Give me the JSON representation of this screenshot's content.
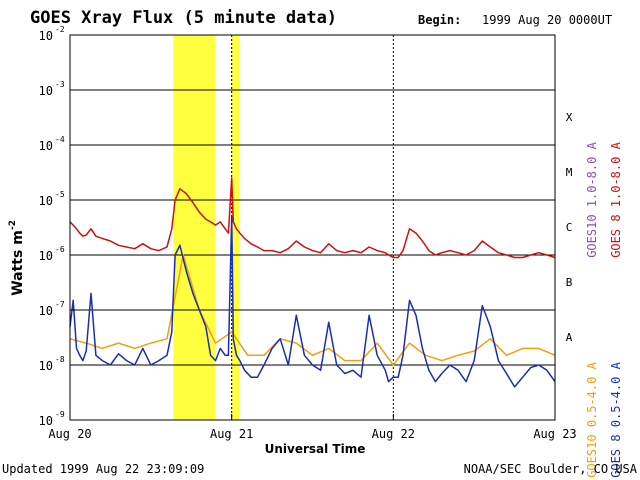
{
  "chart_data": {
    "type": "line",
    "title": "GOES Xray Flux (5 minute data)",
    "begin_label": "Begin:",
    "begin_value": "1999 Aug 20 0000UT",
    "xlabel": "Universal Time",
    "ylabel": "Watts m",
    "ylabel_exp": "-2",
    "y_scale": "log",
    "ylim": [
      1e-09,
      0.01
    ],
    "y_ticks": [
      {
        "base": "10",
        "exp": "-9",
        "value": 1e-09
      },
      {
        "base": "10",
        "exp": "-8",
        "value": 1e-08
      },
      {
        "base": "10",
        "exp": "-7",
        "value": 1e-07
      },
      {
        "base": "10",
        "exp": "-6",
        "value": 1e-06
      },
      {
        "base": "10",
        "exp": "-5",
        "value": 1e-05
      },
      {
        "base": "10",
        "exp": "-4",
        "value": 0.0001
      },
      {
        "base": "10",
        "exp": "-3",
        "value": 0.001
      },
      {
        "base": "10",
        "exp": "-2",
        "value": 0.01
      }
    ],
    "x_ticks": [
      "Aug 20",
      "Aug 21",
      "Aug 22",
      "Aug 23"
    ],
    "xlim_days": [
      0,
      3
    ],
    "flare_classes": [
      {
        "label": "A",
        "value": 3.2e-08
      },
      {
        "label": "B",
        "value": 3.2e-07
      },
      {
        "label": "C",
        "value": 3.2e-06
      },
      {
        "label": "M",
        "value": 3.2e-05
      },
      {
        "label": "X",
        "value": 0.00032
      }
    ],
    "highlights": [
      {
        "from": 0.64,
        "to": 0.9,
        "color": "#ffff40"
      },
      {
        "from": 1.0,
        "to": 1.05,
        "color": "#ffff40"
      }
    ],
    "legend": [
      {
        "text": "GOES10 1.0-8.0 A",
        "color": "#8a4fb8"
      },
      {
        "text": "GOES 8 1.0-8.0 A",
        "color": "#cc1111"
      },
      {
        "text": "GOES10 0.5-4.0 A",
        "color": "#f0a010"
      },
      {
        "text": "GOES 8 0.5-4.0 A",
        "color": "#1a2fb0"
      }
    ],
    "series": [
      {
        "name": "GOES 8 1.0-8.0 A",
        "color": "#cc1111",
        "x": [
          0.0,
          0.02,
          0.04,
          0.06,
          0.08,
          0.1,
          0.13,
          0.16,
          0.2,
          0.25,
          0.3,
          0.35,
          0.4,
          0.45,
          0.5,
          0.55,
          0.6,
          0.63,
          0.65,
          0.68,
          0.72,
          0.76,
          0.8,
          0.84,
          0.87,
          0.9,
          0.93,
          0.96,
          0.98,
          1.0,
          1.01,
          1.03,
          1.05,
          1.08,
          1.12,
          1.16,
          1.2,
          1.25,
          1.3,
          1.35,
          1.4,
          1.45,
          1.5,
          1.55,
          1.6,
          1.65,
          1.7,
          1.75,
          1.8,
          1.85,
          1.9,
          1.95,
          1.97,
          2.0,
          2.03,
          2.06,
          2.1,
          2.14,
          2.18,
          2.22,
          2.26,
          2.3,
          2.35,
          2.4,
          2.45,
          2.5,
          2.55,
          2.6,
          2.65,
          2.7,
          2.75,
          2.8,
          2.85,
          2.9,
          2.95,
          3.0
        ],
        "y": [
          4e-06,
          3.5e-06,
          3e-06,
          2.5e-06,
          2.2e-06,
          2.3e-06,
          3e-06,
          2.2e-06,
          2e-06,
          1.8e-06,
          1.5e-06,
          1.4e-06,
          1.3e-06,
          1.6e-06,
          1.3e-06,
          1.2e-06,
          1.4e-06,
          3e-06,
          1e-05,
          1.6e-05,
          1.3e-05,
          9e-06,
          6e-06,
          4.5e-06,
          4e-06,
          3.5e-06,
          4e-06,
          3e-06,
          2.5e-06,
          2.5e-05,
          4e-06,
          3e-06,
          2.5e-06,
          2e-06,
          1.6e-06,
          1.4e-06,
          1.2e-06,
          1.2e-06,
          1.1e-06,
          1.3e-06,
          1.8e-06,
          1.4e-06,
          1.2e-06,
          1.1e-06,
          1.6e-06,
          1.2e-06,
          1.1e-06,
          1.2e-06,
          1.1e-06,
          1.4e-06,
          1.2e-06,
          1.1e-06,
          1e-06,
          9e-07,
          9e-07,
          1.2e-06,
          3e-06,
          2.5e-06,
          1.8e-06,
          1.2e-06,
          1e-06,
          1.1e-06,
          1.2e-06,
          1.1e-06,
          1e-06,
          1.2e-06,
          1.8e-06,
          1.4e-06,
          1.1e-06,
          1e-06,
          9e-07,
          9e-07,
          1e-06,
          1.1e-06,
          1e-06,
          9e-07
        ]
      },
      {
        "name": "GOES 8 0.5-4.0 A",
        "color": "#1a2fb0",
        "x": [
          0.0,
          0.02,
          0.04,
          0.06,
          0.08,
          0.1,
          0.13,
          0.16,
          0.2,
          0.25,
          0.3,
          0.35,
          0.4,
          0.45,
          0.5,
          0.55,
          0.6,
          0.63,
          0.65,
          0.68,
          0.72,
          0.76,
          0.8,
          0.84,
          0.87,
          0.9,
          0.93,
          0.96,
          0.98,
          1.0,
          1.01,
          1.03,
          1.05,
          1.08,
          1.12,
          1.16,
          1.2,
          1.25,
          1.3,
          1.35,
          1.4,
          1.45,
          1.5,
          1.55,
          1.6,
          1.65,
          1.7,
          1.75,
          1.8,
          1.85,
          1.9,
          1.95,
          1.97,
          2.0,
          2.03,
          2.06,
          2.1,
          2.14,
          2.18,
          2.22,
          2.26,
          2.3,
          2.35,
          2.4,
          2.45,
          2.5,
          2.55,
          2.6,
          2.65,
          2.7,
          2.75,
          2.8,
          2.85,
          2.9,
          2.95,
          3.0
        ],
        "y": [
          5e-08,
          1.5e-07,
          2e-08,
          1.5e-08,
          1.2e-08,
          1.8e-08,
          2e-07,
          1.5e-08,
          1.2e-08,
          1e-08,
          1.6e-08,
          1.2e-08,
          1e-08,
          2e-08,
          1e-08,
          1.2e-08,
          1.5e-08,
          4e-08,
          1e-06,
          1.5e-06,
          5e-07,
          2e-07,
          1e-07,
          5e-08,
          1.5e-08,
          1.2e-08,
          2e-08,
          1.5e-08,
          1.5e-08,
          5e-06,
          3e-08,
          1.5e-08,
          1.2e-08,
          8e-09,
          6e-09,
          6e-09,
          1e-08,
          2e-08,
          3e-08,
          1e-08,
          8e-08,
          1.5e-08,
          1e-08,
          8e-09,
          6e-08,
          1e-08,
          7e-09,
          8e-09,
          6e-09,
          8e-08,
          1.5e-08,
          8e-09,
          5e-09,
          6e-09,
          6e-09,
          1.5e-08,
          1.5e-07,
          8e-08,
          2e-08,
          8e-09,
          5e-09,
          7e-09,
          1e-08,
          8e-09,
          5e-09,
          1.2e-08,
          1.2e-07,
          5e-08,
          1.2e-08,
          7e-09,
          4e-09,
          6e-09,
          9e-09,
          1e-08,
          8e-09,
          5e-09
        ]
      },
      {
        "name": "GOES10 0.5-4.0 A",
        "color": "#f0a010",
        "x": [
          0.0,
          0.1,
          0.2,
          0.3,
          0.4,
          0.5,
          0.6,
          0.7,
          0.8,
          0.9,
          1.0,
          1.1,
          1.2,
          1.3,
          1.4,
          1.5,
          1.6,
          1.7,
          1.8,
          1.9,
          2.0,
          2.1,
          2.2,
          2.3,
          2.4,
          2.5,
          2.6,
          2.7,
          2.8,
          2.9,
          3.0
        ],
        "y": [
          3e-08,
          2.5e-08,
          2e-08,
          2.5e-08,
          2e-08,
          2.5e-08,
          3e-08,
          1e-06,
          1e-07,
          2.5e-08,
          4e-08,
          1.5e-08,
          1.5e-08,
          3e-08,
          2.5e-08,
          1.5e-08,
          2e-08,
          1.2e-08,
          1.2e-08,
          2.5e-08,
          1e-08,
          2.5e-08,
          1.5e-08,
          1.2e-08,
          1.5e-08,
          1.8e-08,
          3e-08,
          1.5e-08,
          2e-08,
          2e-08,
          1.5e-08
        ]
      }
    ],
    "footer_left": "Updated 1999 Aug 22 23:09:09",
    "footer_right": "NOAA/SEC Boulder, CO USA"
  }
}
